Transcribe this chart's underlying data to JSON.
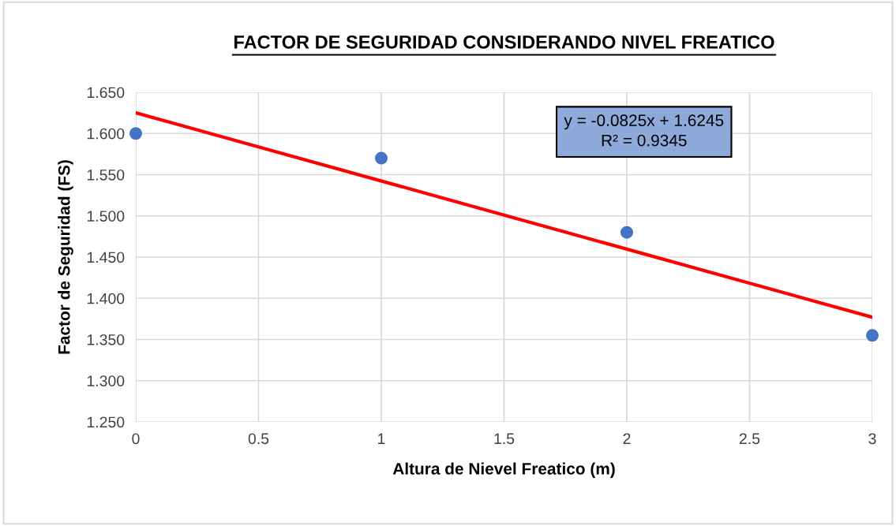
{
  "chart_data": {
    "type": "scatter",
    "title": "FACTOR DE SEGURIDAD CONSIDERANDO NIVEL FREATICO",
    "xlabel": "Altura de Nievel Freatico (m)",
    "ylabel": "Factor de Seguridad (FS)",
    "x": [
      0,
      1,
      2,
      3
    ],
    "series": [
      {
        "color": "#4472c4",
        "values": [
          1.6,
          1.57,
          1.48,
          1.355
        ],
        "marker": "circle"
      },
      {
        "type": "line",
        "color": "#ff0000",
        "x": [
          0,
          3
        ],
        "values": [
          1.625,
          1.377
        ],
        "marker": "none",
        "line_style": "solid"
      }
    ],
    "annotations": [
      "y = -0.0825x + 1.6245\nR² = 0.9345"
    ],
    "xlim": [
      0,
      3
    ],
    "xticks": [
      0,
      0.5,
      1,
      1.5,
      2,
      2.5,
      3
    ],
    "ylim": [
      1.25,
      1.65
    ],
    "yticks": [
      {
        "value": 1.25,
        "label": "1.250"
      },
      {
        "value": 1.3,
        "label": "1.300"
      },
      {
        "value": 1.35,
        "label": "1.350"
      },
      {
        "value": 1.4,
        "label": "1.400"
      },
      {
        "value": 1.45,
        "label": "1.450"
      },
      {
        "value": 1.5,
        "label": "1.500"
      },
      {
        "value": 1.55,
        "label": "1.550"
      },
      {
        "value": 1.6,
        "label": "1.600"
      },
      {
        "value": 1.65,
        "label": "1.650"
      }
    ],
    "grid": true,
    "legend": false
  }
}
